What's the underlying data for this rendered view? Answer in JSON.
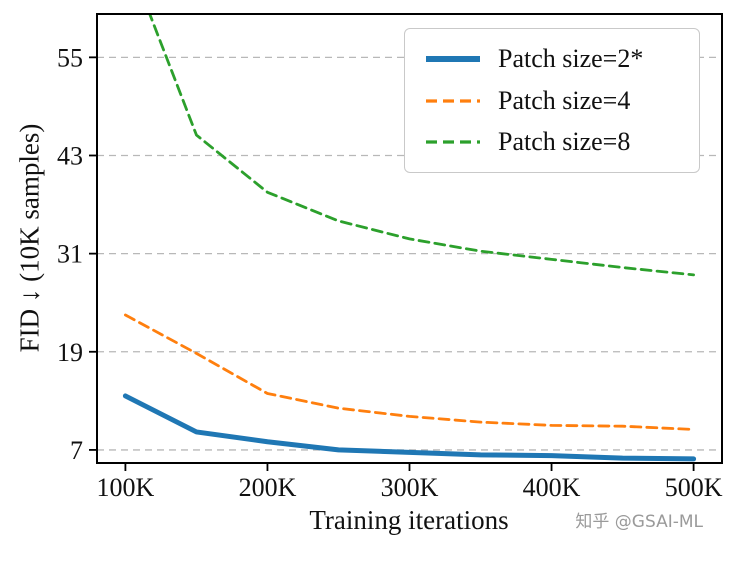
{
  "chart_data": {
    "type": "line",
    "title": "",
    "xlabel": "Training iterations",
    "ylabel": "FID ↓ (10K samples)",
    "xlim": [
      80,
      520
    ],
    "ylim": [
      5.4,
      60.3
    ],
    "xticks": [
      100,
      200,
      300,
      400,
      500
    ],
    "xtick_labels": [
      "100K",
      "200K",
      "300K",
      "400K",
      "500K"
    ],
    "yticks": [
      7,
      19,
      31,
      43,
      55
    ],
    "ytick_labels": [
      "7",
      "19",
      "31",
      "43",
      "55"
    ],
    "grid": "horizontal-dashed",
    "grid_color": "#b8b8b8",
    "legend_position": "upper-right",
    "x": [
      100,
      150,
      200,
      250,
      300,
      350,
      400,
      450,
      500
    ],
    "series": [
      {
        "name": "Patch size=2*",
        "color": "#1f77b4",
        "style": "solid",
        "width": 5,
        "values": [
          13.6,
          9.2,
          8.0,
          7.0,
          6.7,
          6.4,
          6.3,
          6.0,
          5.9
        ]
      },
      {
        "name": "Patch size=4",
        "color": "#ff7f0e",
        "style": "dashed",
        "width": 2.8,
        "values": [
          23.5,
          18.8,
          13.9,
          12.1,
          11.1,
          10.4,
          10.0,
          9.9,
          9.5
        ]
      },
      {
        "name": "Patch size=8",
        "color": "#2ca02c",
        "style": "dashed",
        "width": 2.8,
        "values": [
          68.0,
          45.5,
          38.5,
          35.0,
          32.8,
          31.3,
          30.3,
          29.3,
          28.4
        ]
      }
    ]
  },
  "watermark": "知乎 @GSAI-ML"
}
